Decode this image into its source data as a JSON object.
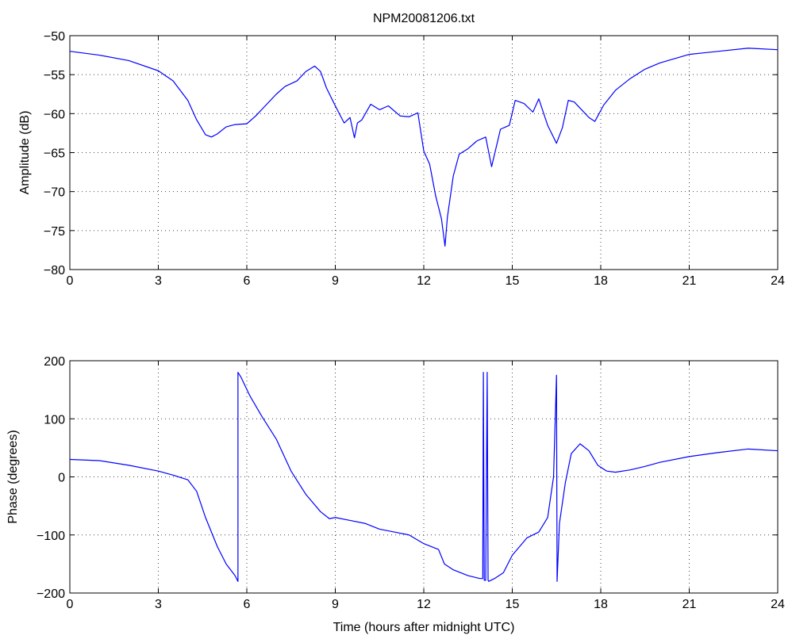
{
  "title": "NPM20081206.txt",
  "series_color": "#0000ff",
  "chart_data": [
    {
      "type": "line",
      "title": "NPM20081206.txt",
      "xlabel": "",
      "ylabel": "Amplitude (dB)",
      "xlim": [
        0,
        24
      ],
      "ylim": [
        -80,
        -50
      ],
      "xticks": [
        0,
        3,
        6,
        9,
        12,
        15,
        18,
        21,
        24
      ],
      "yticks": [
        -80,
        -75,
        -70,
        -65,
        -60,
        -55,
        -50
      ],
      "grid": true,
      "x": [
        0,
        1,
        2,
        3,
        3.5,
        4,
        4.3,
        4.6,
        4.8,
        5.0,
        5.3,
        5.6,
        6.0,
        6.3,
        6.6,
        7.0,
        7.3,
        7.7,
        8.0,
        8.3,
        8.5,
        8.7,
        9.0,
        9.3,
        9.5,
        9.65,
        9.75,
        9.9,
        10.2,
        10.5,
        10.8,
        11.2,
        11.5,
        11.8,
        12.0,
        12.2,
        12.4,
        12.6,
        12.72,
        12.8,
        13.0,
        13.2,
        13.5,
        13.8,
        14.1,
        14.3,
        14.6,
        14.9,
        15.1,
        15.4,
        15.7,
        15.9,
        16.2,
        16.5,
        16.7,
        16.9,
        17.1,
        17.3,
        17.6,
        17.8,
        18.1,
        18.5,
        19.0,
        19.5,
        20.0,
        21.0,
        22.0,
        23.0,
        24.0
      ],
      "values": [
        -52,
        -52.5,
        -53.2,
        -54.5,
        -55.8,
        -58.3,
        -60.8,
        -62.7,
        -63,
        -62.6,
        -61.7,
        -61.4,
        -61.3,
        -60.3,
        -59.1,
        -57.5,
        -56.5,
        -55.8,
        -54.6,
        -53.9,
        -54.6,
        -56.7,
        -59,
        -61.2,
        -60.5,
        -63.1,
        -61.2,
        -60.8,
        -58.8,
        -59.5,
        -59,
        -60.3,
        -60.4,
        -59.9,
        -64.8,
        -66.5,
        -70.5,
        -73.5,
        -77,
        -73.3,
        -68,
        -65.2,
        -64.5,
        -63.5,
        -63,
        -66.8,
        -62,
        -61.5,
        -58.3,
        -58.7,
        -59.8,
        -58.1,
        -61.5,
        -63.8,
        -61.8,
        -58.3,
        -58.5,
        -59.3,
        -60.5,
        -61,
        -58.9,
        -57,
        -55.5,
        -54.3,
        -53.5,
        -52.4,
        -52,
        -51.6,
        -51.8
      ]
    },
    {
      "type": "line",
      "title": "",
      "xlabel": "Time (hours after midnight UTC)",
      "ylabel": "Phase (degrees)",
      "xlim": [
        0,
        24
      ],
      "ylim": [
        -200,
        200
      ],
      "xticks": [
        0,
        3,
        6,
        9,
        12,
        15,
        18,
        21,
        24
      ],
      "yticks": [
        -200,
        -100,
        0,
        100,
        200
      ],
      "grid": true,
      "x": [
        0,
        1,
        2,
        3,
        3.5,
        4,
        4.3,
        4.6,
        5.0,
        5.3,
        5.6,
        5.7,
        5.7,
        5.8,
        6.1,
        6.5,
        7.0,
        7.5,
        8.0,
        8.5,
        8.8,
        9.0,
        9.5,
        10.0,
        10.5,
        11.0,
        11.5,
        12.0,
        12.5,
        12.7,
        13.0,
        13.5,
        13.9,
        14.0,
        14.02,
        14.05,
        14.1,
        14.15,
        14.18,
        14.2,
        14.4,
        14.7,
        15.0,
        15.5,
        15.9,
        16.2,
        16.4,
        16.5,
        16.52,
        16.6,
        16.8,
        17.0,
        17.3,
        17.6,
        17.9,
        18.2,
        18.5,
        19.0,
        19.5,
        20.0,
        21.0,
        22.0,
        23.0,
        24.0
      ],
      "values": [
        30,
        28,
        20,
        10,
        3,
        -5,
        -25,
        -70,
        -120,
        -150,
        -170,
        -180,
        180,
        172,
        140,
        105,
        65,
        10,
        -30,
        -60,
        -72,
        -70,
        -75,
        -80,
        -90,
        -95,
        -100,
        -115,
        -125,
        -150,
        -160,
        -170,
        -175,
        -175,
        180,
        -178,
        -178,
        180,
        -178,
        -180,
        -175,
        -165,
        -135,
        -105,
        -95,
        -70,
        0,
        175,
        -180,
        -80,
        -10,
        40,
        57,
        45,
        20,
        10,
        8,
        12,
        18,
        25,
        35,
        42,
        48,
        45
      ]
    }
  ]
}
